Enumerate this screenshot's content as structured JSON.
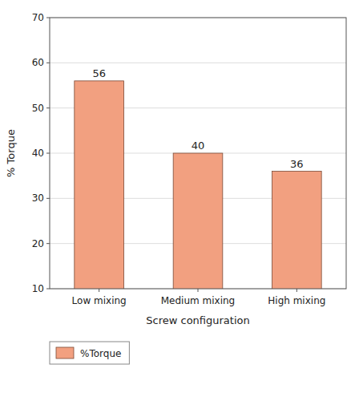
{
  "chart_data": {
    "type": "bar",
    "categories": [
      "Low mixing",
      "Medium mixing",
      "High mixing"
    ],
    "series": [
      {
        "name": "%Torque",
        "color": "#F2A080",
        "values": [
          56,
          40,
          36
        ]
      }
    ],
    "xlabel": "Screw configuration",
    "ylabel": "% Torque",
    "ylim": [
      10,
      70
    ],
    "yticks": [
      10,
      20,
      30,
      40,
      50,
      60,
      70
    ],
    "grid": true,
    "legend": "bottom",
    "data_labels": true
  }
}
